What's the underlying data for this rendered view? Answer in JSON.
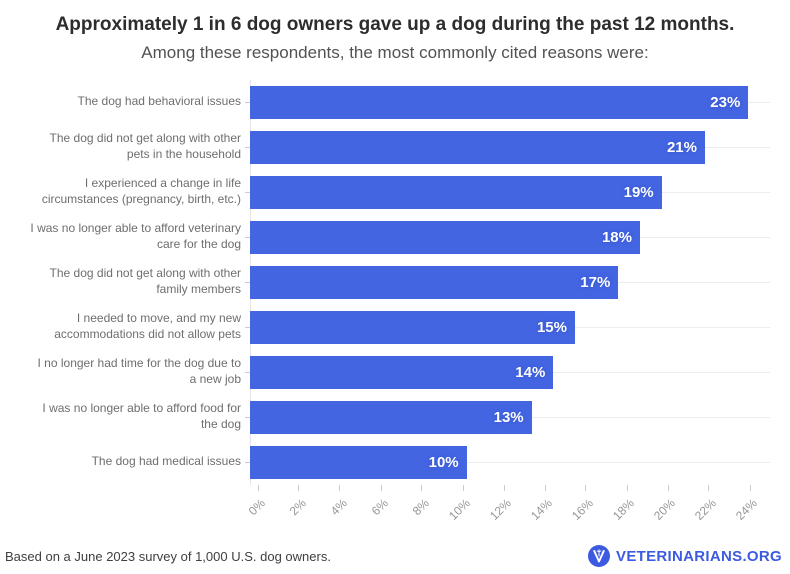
{
  "header": {
    "title": "Approximately 1 in 6 dog owners gave up a dog during the past 12 months.",
    "subtitle": "Among these respondents, the most commonly cited reasons were:"
  },
  "chart_data": {
    "type": "bar",
    "orientation": "horizontal",
    "title": "Approximately 1 in 6 dog owners gave up a dog during the past 12 months.",
    "subtitle": "Among these respondents, the most commonly cited reasons were:",
    "categories": [
      "The dog had behavioral issues",
      "The dog did not get along with other\npets in the household",
      "I experienced a change in life\ncircumstances (pregnancy, birth, etc.)",
      "I was no longer able to afford veterinary\ncare for the dog",
      "The dog did not get along with other\nfamily members",
      "I needed to move, and my new\naccommodations did not allow pets",
      "I no longer had time for the dog due to\na new job",
      "I was no longer able to afford food for\nthe dog",
      "The dog had medical issues"
    ],
    "values": [
      23,
      21,
      19,
      18,
      17,
      15,
      14,
      13,
      10
    ],
    "value_labels": [
      "23%",
      "21%",
      "19%",
      "18%",
      "17%",
      "15%",
      "14%",
      "13%",
      "10%"
    ],
    "xlim": [
      0,
      24
    ],
    "x_ticks": [
      "0%",
      "2%",
      "4%",
      "6%",
      "8%",
      "10%",
      "12%",
      "14%",
      "16%",
      "18%",
      "20%",
      "22%",
      "24%"
    ],
    "grid": "horizontal gridline per category row, gridlines on",
    "legend": "none",
    "bar_color": "#4365e2",
    "value_label_color": "#ffffff",
    "gridline_color": "#ededed",
    "tick_color": "#cccccc"
  },
  "footer": {
    "source": "Based on a June 2023 survey of 1,000 U.S. dog owners.",
    "brand": "VETERINARIANS.ORG",
    "brand_color": "#3d5be0",
    "logo_icon": "v-caduceus-circle-icon"
  }
}
